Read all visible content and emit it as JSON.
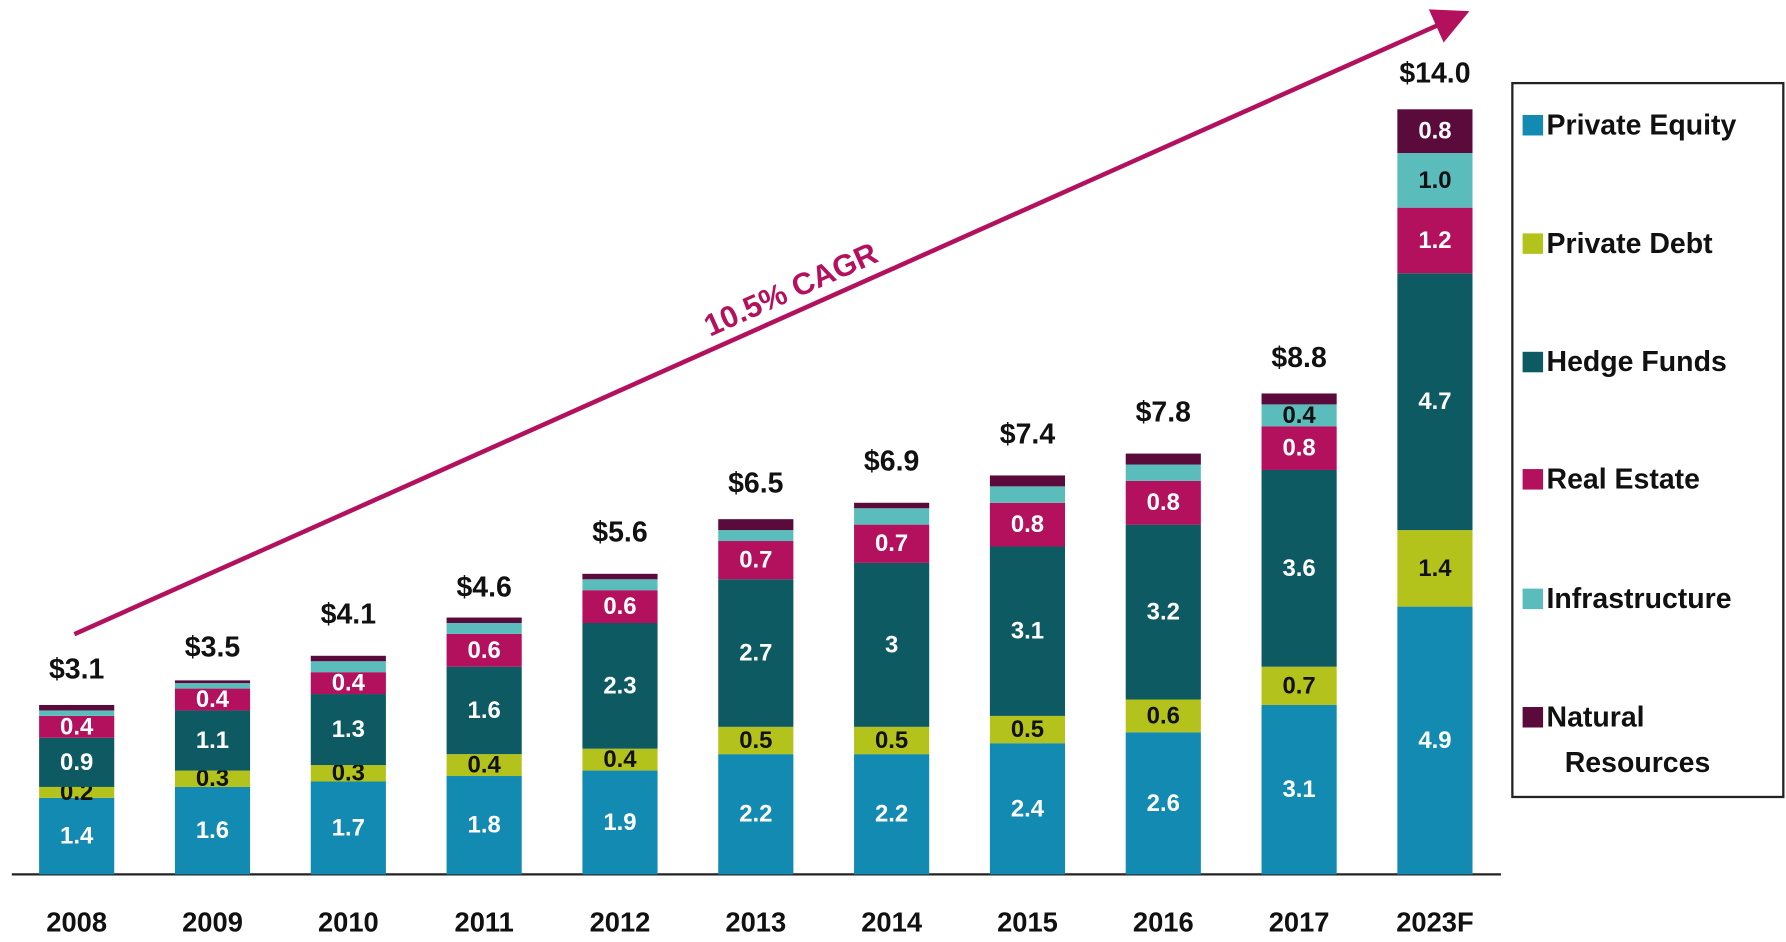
{
  "chart_data": {
    "type": "stacked_bar",
    "categories": [
      "2008",
      "2009",
      "2010",
      "2011",
      "2012",
      "2013",
      "2014",
      "2015",
      "2016",
      "2017",
      "2023F"
    ],
    "series": [
      {
        "name": "Private Equity",
        "color": "#128ab2",
        "values": [
          1.4,
          1.6,
          1.7,
          1.8,
          1.9,
          2.2,
          2.2,
          2.4,
          2.6,
          3.1,
          4.9
        ]
      },
      {
        "name": "Private Debt",
        "color": "#b4c21c",
        "values": [
          0.2,
          0.3,
          0.3,
          0.4,
          0.4,
          0.5,
          0.5,
          0.5,
          0.6,
          0.7,
          1.4
        ]
      },
      {
        "name": "Hedge Funds",
        "color": "#0d5a63",
        "values": [
          0.9,
          1.1,
          1.3,
          1.6,
          2.3,
          2.7,
          3.0,
          3.1,
          3.2,
          3.6,
          4.7
        ]
      },
      {
        "name": "Real Estate",
        "color": "#b3115e",
        "values": [
          0.4,
          0.4,
          0.4,
          0.6,
          0.6,
          0.7,
          0.7,
          0.8,
          0.8,
          0.8,
          1.2
        ]
      },
      {
        "name": "Infrastructure",
        "color": "#5bbcbc",
        "values": [
          0.1,
          0.1,
          0.2,
          0.2,
          0.2,
          0.2,
          0.3,
          0.3,
          0.3,
          0.4,
          1.0
        ],
        "value_labels": [
          null,
          null,
          null,
          null,
          null,
          null,
          null,
          null,
          null,
          "0.4",
          "1.0"
        ]
      },
      {
        "name": "Natural Resources",
        "color": "#5a0b3c",
        "values": [
          0.1,
          0.05,
          0.1,
          0.1,
          0.1,
          0.2,
          0.1,
          0.2,
          0.2,
          0.2,
          0.8
        ],
        "value_labels": [
          null,
          null,
          null,
          null,
          null,
          null,
          null,
          null,
          null,
          null,
          "0.8"
        ]
      }
    ],
    "totals": [
      3.1,
      3.5,
      4.1,
      4.6,
      5.6,
      6.5,
      6.9,
      7.4,
      7.8,
      8.8,
      14.0
    ],
    "total_labels": [
      "$3.1",
      "$3.5",
      "$4.1",
      "$4.6",
      "$5.6",
      "$6.5",
      "$6.9",
      "$7.4",
      "$7.8",
      "$8.8",
      "$14.0"
    ],
    "annotation": "10.5% CAGR"
  }
}
